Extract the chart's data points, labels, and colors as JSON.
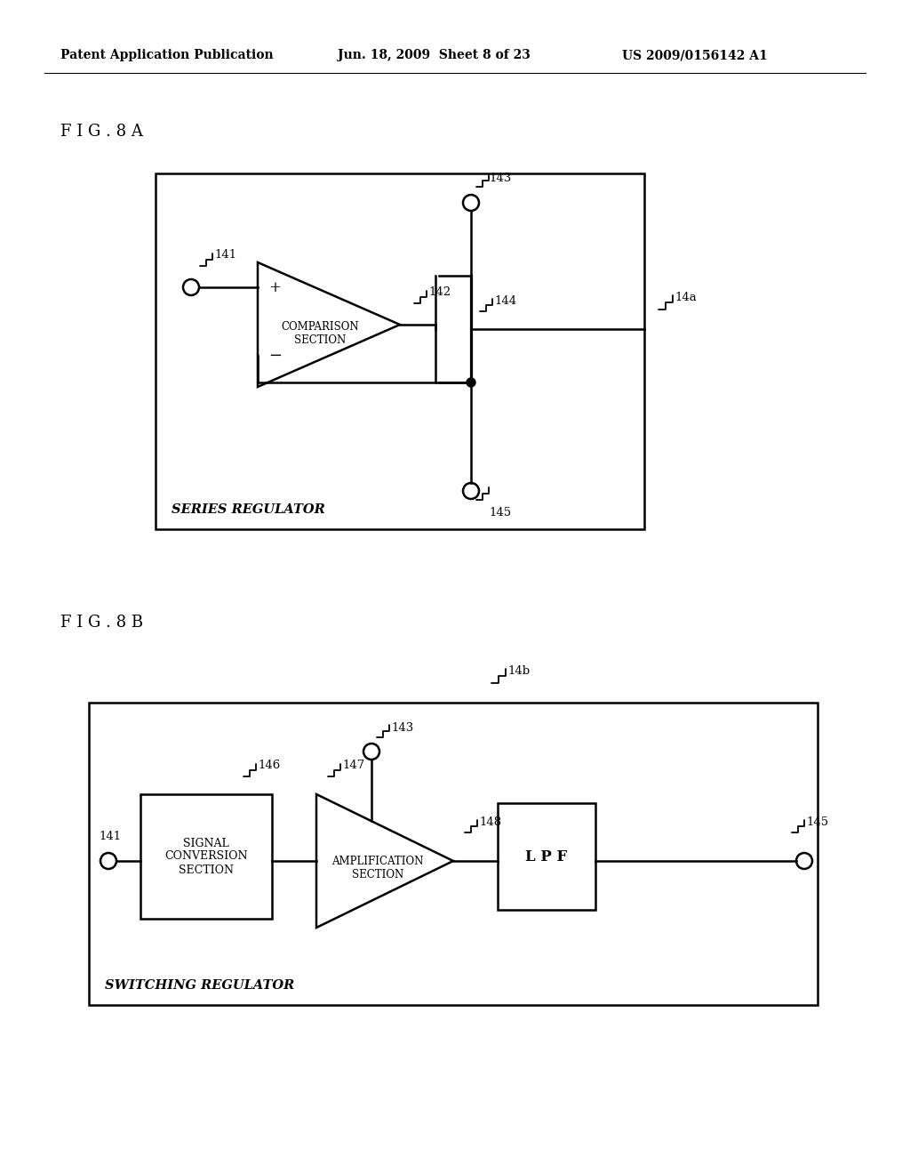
{
  "bg_color": "#ffffff",
  "header_left": "Patent Application Publication",
  "header_center": "Jun. 18, 2009  Sheet 8 of 23",
  "header_right": "US 2009/0156142 A1",
  "fig8a_label": "F I G . 8 A",
  "fig8b_label": "F I G . 8 B",
  "series_regulator_label": "SERIES REGULATOR",
  "switching_regulator_label": "SWITCHING REGULATOR",
  "comparison_section": "COMPARISON\nSECTION",
  "signal_conversion": "SIGNAL\nCONVERSION\nSECTION",
  "amplification_section": "AMPLIFICATION\nSECTION",
  "lpf_label": "L P F",
  "label_141": "141",
  "label_142": "142",
  "label_143": "143",
  "label_144": "144",
  "label_145": "145",
  "label_146": "146",
  "label_147": "147",
  "label_148": "148",
  "label_14a": "14a",
  "label_14b": "14b"
}
